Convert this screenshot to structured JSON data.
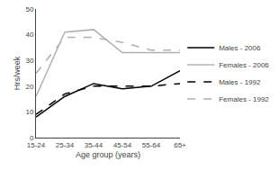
{
  "chart_data": {
    "type": "line",
    "xlabel": "Age group (years)",
    "ylabel": "Hrs/week",
    "categories": [
      "15-24",
      "25-34",
      "35-44",
      "45-54",
      "55-64",
      "65+"
    ],
    "series": [
      {
        "name": "Males - 2006",
        "color": "#000000",
        "line_style": "solid",
        "values": [
          8,
          16,
          21,
          19,
          20,
          26
        ]
      },
      {
        "name": "Females - 2006",
        "color": "#b0b0b0",
        "line_style": "solid",
        "values": [
          16,
          41,
          42,
          33,
          33,
          33
        ]
      },
      {
        "name": "Males - 1992",
        "color": "#000000",
        "line_style": "dashed",
        "values": [
          9,
          17,
          20,
          20,
          20,
          21
        ]
      },
      {
        "name": "Females - 1992",
        "color": "#b0b0b0",
        "line_style": "dashed",
        "values": [
          25,
          39,
          39,
          37,
          34,
          34
        ]
      }
    ],
    "ylim": [
      0,
      50
    ],
    "yticks": [
      0,
      10,
      20,
      30,
      40,
      50
    ],
    "grid": false,
    "legend": "right"
  }
}
